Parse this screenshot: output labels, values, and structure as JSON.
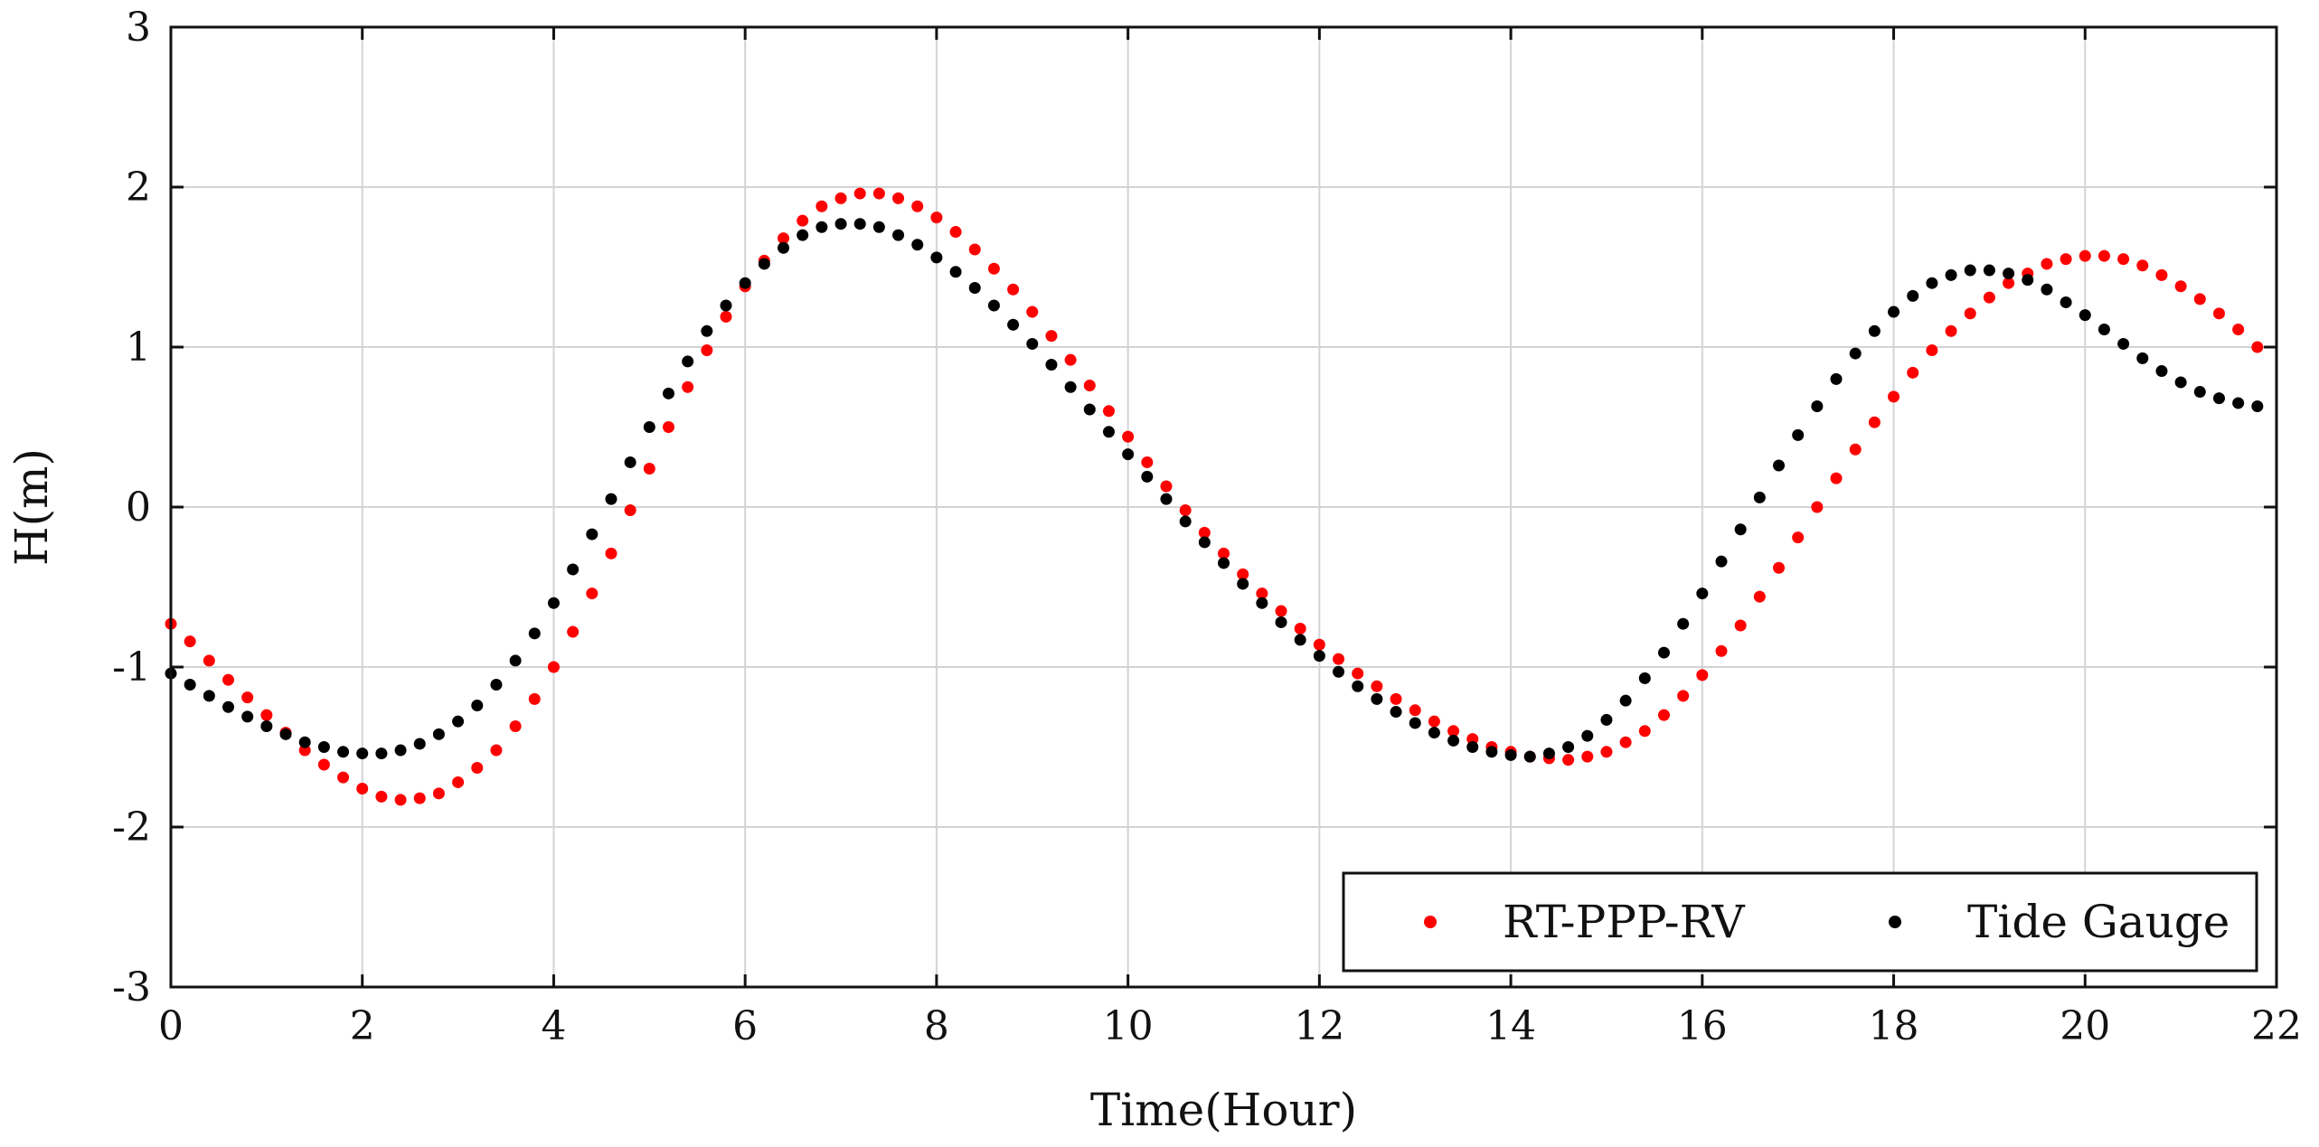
{
  "chart_data": {
    "type": "scatter",
    "title": "",
    "xlabel": "Time(Hour)",
    "ylabel": "H(m)",
    "xlim": [
      0,
      22
    ],
    "ylim": [
      -3,
      3
    ],
    "xticks": [
      0,
      2,
      4,
      6,
      8,
      10,
      12,
      14,
      16,
      18,
      20,
      22
    ],
    "yticks": [
      -3,
      -2,
      -1,
      0,
      1,
      2,
      3
    ],
    "grid": true,
    "legend_position": "bottom-right",
    "sampling_interval_hours": 0.2,
    "series": [
      {
        "name": "RT-PPP-RV",
        "color": "#ff0000",
        "x_start": 0,
        "x_step": 0.2,
        "values": [
          -0.73,
          -0.84,
          -0.96,
          -1.08,
          -1.19,
          -1.3,
          -1.41,
          -1.52,
          -1.61,
          -1.69,
          -1.76,
          -1.81,
          -1.83,
          -1.82,
          -1.79,
          -1.72,
          -1.63,
          -1.52,
          -1.37,
          -1.2,
          -1.0,
          -0.78,
          -0.54,
          -0.29,
          -0.02,
          0.24,
          0.5,
          0.75,
          0.98,
          1.19,
          1.38,
          1.54,
          1.68,
          1.79,
          1.88,
          1.93,
          1.96,
          1.96,
          1.93,
          1.88,
          1.81,
          1.72,
          1.61,
          1.49,
          1.36,
          1.22,
          1.07,
          0.92,
          0.76,
          0.6,
          0.44,
          0.28,
          0.13,
          -0.02,
          -0.16,
          -0.29,
          -0.42,
          -0.54,
          -0.65,
          -0.76,
          -0.86,
          -0.95,
          -1.04,
          -1.12,
          -1.2,
          -1.27,
          -1.34,
          -1.4,
          -1.45,
          -1.5,
          -1.53,
          -1.56,
          -1.57,
          -1.58,
          -1.56,
          -1.53,
          -1.47,
          -1.4,
          -1.3,
          -1.18,
          -1.05,
          -0.9,
          -0.74,
          -0.56,
          -0.38,
          -0.19,
          -0.0,
          0.18,
          0.36,
          0.53,
          0.69,
          0.84,
          0.98,
          1.1,
          1.21,
          1.31,
          1.4,
          1.46,
          1.52,
          1.55,
          1.57,
          1.57,
          1.55,
          1.51,
          1.45,
          1.38,
          1.3,
          1.21,
          1.11,
          1.0
        ]
      },
      {
        "name": "Tide Gauge",
        "color": "#000000",
        "x_start": 0,
        "x_step": 0.2,
        "values": [
          -1.04,
          -1.11,
          -1.18,
          -1.25,
          -1.31,
          -1.37,
          -1.42,
          -1.47,
          -1.5,
          -1.53,
          -1.54,
          -1.54,
          -1.52,
          -1.48,
          -1.42,
          -1.34,
          -1.24,
          -1.11,
          -0.96,
          -0.79,
          -0.6,
          -0.39,
          -0.17,
          0.05,
          0.28,
          0.5,
          0.71,
          0.91,
          1.1,
          1.26,
          1.4,
          1.52,
          1.62,
          1.7,
          1.75,
          1.77,
          1.77,
          1.75,
          1.7,
          1.64,
          1.56,
          1.47,
          1.37,
          1.26,
          1.14,
          1.02,
          0.89,
          0.75,
          0.61,
          0.47,
          0.33,
          0.19,
          0.05,
          -0.09,
          -0.22,
          -0.35,
          -0.48,
          -0.6,
          -0.72,
          -0.83,
          -0.93,
          -1.03,
          -1.12,
          -1.2,
          -1.28,
          -1.35,
          -1.41,
          -1.46,
          -1.5,
          -1.53,
          -1.55,
          -1.56,
          -1.54,
          -1.5,
          -1.43,
          -1.33,
          -1.21,
          -1.07,
          -0.91,
          -0.73,
          -0.54,
          -0.34,
          -0.14,
          0.06,
          0.26,
          0.45,
          0.63,
          0.8,
          0.96,
          1.1,
          1.22,
          1.32,
          1.4,
          1.45,
          1.48,
          1.48,
          1.46,
          1.42,
          1.36,
          1.28,
          1.2,
          1.11,
          1.02,
          0.93,
          0.85,
          0.78,
          0.72,
          0.68,
          0.65,
          0.63
        ]
      }
    ]
  }
}
